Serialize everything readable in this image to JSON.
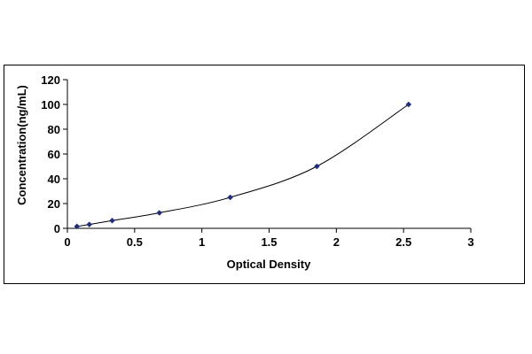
{
  "chart_data": {
    "type": "scatter",
    "title": "",
    "xlabel": "Optical Density",
    "ylabel": "Concentration(ng/mL)",
    "xlim": [
      0,
      3
    ],
    "ylim": [
      0,
      120
    ],
    "x_ticks": [
      0,
      0.5,
      1,
      1.5,
      2,
      2.5,
      3
    ],
    "x_tick_labels": [
      "0",
      "0.5",
      "1",
      "1.5",
      "2",
      "2.5",
      "3"
    ],
    "y_ticks": [
      0,
      20,
      40,
      60,
      80,
      100,
      120
    ],
    "y_tick_labels": [
      "0",
      "20",
      "40",
      "60",
      "80",
      "100",
      "120"
    ],
    "grid": false,
    "legend": "none",
    "series": [
      {
        "x": [
          0.071,
          0.163,
          0.333,
          0.684,
          1.211,
          1.855,
          2.537
        ],
        "y": [
          1.56,
          3.12,
          6.25,
          12.5,
          25,
          50,
          100
        ],
        "marker": "diamond",
        "marker_color": "#1f2d7a",
        "line": "smooth",
        "line_color": "#000000"
      }
    ]
  }
}
